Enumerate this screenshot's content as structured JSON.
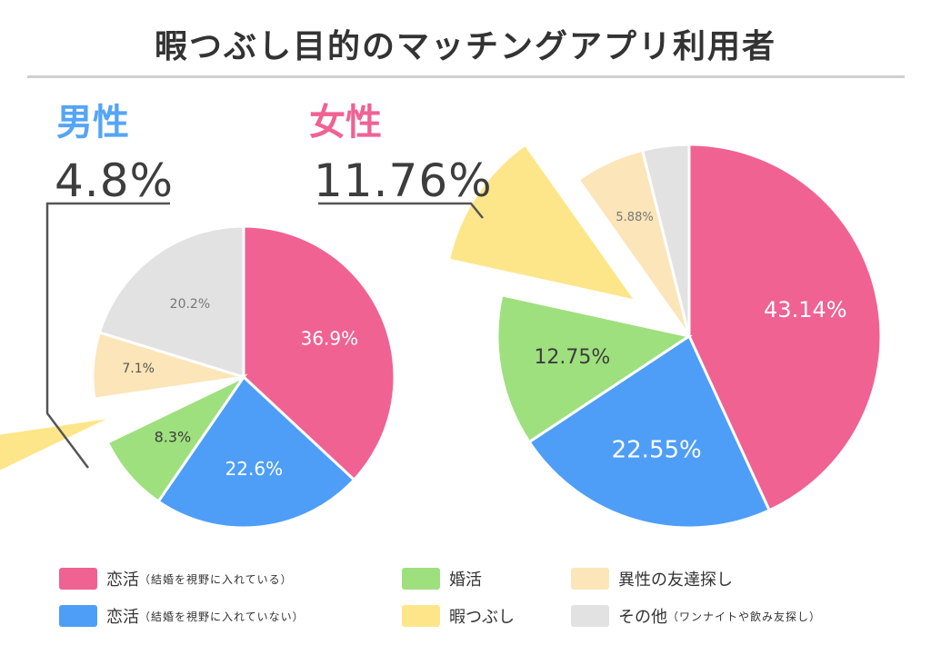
{
  "title": "暇つぶし目的のマッチングアプリ利用者",
  "colors": {
    "pink": "#f06292",
    "blue": "#4e9ef7",
    "green": "#9ee07e",
    "yellow": "#fde68a",
    "beige": "#fce5b8",
    "gray": "#e2e2e2",
    "male_label": "#55a5f5",
    "female_label": "#f06292"
  },
  "chart_data": [
    {
      "type": "pie",
      "group": "男性",
      "highlight_value": "4.8%",
      "slices": [
        {
          "category": "恋活（結婚を視野に入れている）",
          "value": 36.9,
          "label": "36.9%",
          "color": "#f06292"
        },
        {
          "category": "恋活（結婚を視野に入れていない）",
          "value": 22.6,
          "label": "22.6%",
          "color": "#4e9ef7"
        },
        {
          "category": "婚活",
          "value": 8.3,
          "label": "8.3%",
          "color": "#9ee07e"
        },
        {
          "category": "暇つぶし",
          "value": 4.8,
          "label": "",
          "color": "#fde68a"
        },
        {
          "category": "異性の友達探し",
          "value": 7.1,
          "label": "7.1%",
          "color": "#fce5b8"
        },
        {
          "category": "その他（ワンナイトや飲み友探し）",
          "value": 20.2,
          "label": "20.2%",
          "color": "#e2e2e2"
        }
      ]
    },
    {
      "type": "pie",
      "group": "女性",
      "highlight_value": "11.76%",
      "slices": [
        {
          "category": "恋活（結婚を視野に入れている）",
          "value": 43.14,
          "label": "43.14%",
          "color": "#f06292"
        },
        {
          "category": "恋活（結婚を視野に入れていない）",
          "value": 22.55,
          "label": "22.55%",
          "color": "#4e9ef7"
        },
        {
          "category": "婚活",
          "value": 12.75,
          "label": "12.75%",
          "color": "#9ee07e"
        },
        {
          "category": "暇つぶし",
          "value": 11.76,
          "label": "",
          "color": "#fde68a"
        },
        {
          "category": "異性の友達探し",
          "value": 5.88,
          "label": "5.88%",
          "color": "#fce5b8"
        },
        {
          "category": "その他（ワンナイトや飲み友探し）",
          "value": 3.92,
          "label": "",
          "color": "#e2e2e2"
        }
      ]
    }
  ],
  "legend": [
    {
      "main": "恋活",
      "sub": "（結婚を視野に入れている）",
      "color": "#f06292"
    },
    {
      "main": "婚活",
      "sub": "",
      "color": "#9ee07e"
    },
    {
      "main": "異性の友達探し",
      "sub": "",
      "color": "#fce5b8"
    },
    {
      "main": "恋活",
      "sub": "（結婚を視野に入れていない）",
      "color": "#4e9ef7"
    },
    {
      "main": "暇つぶし",
      "sub": "",
      "color": "#fde68a"
    },
    {
      "main": "その他",
      "sub": "（ワンナイトや飲み友探し）",
      "color": "#e2e2e2"
    }
  ]
}
